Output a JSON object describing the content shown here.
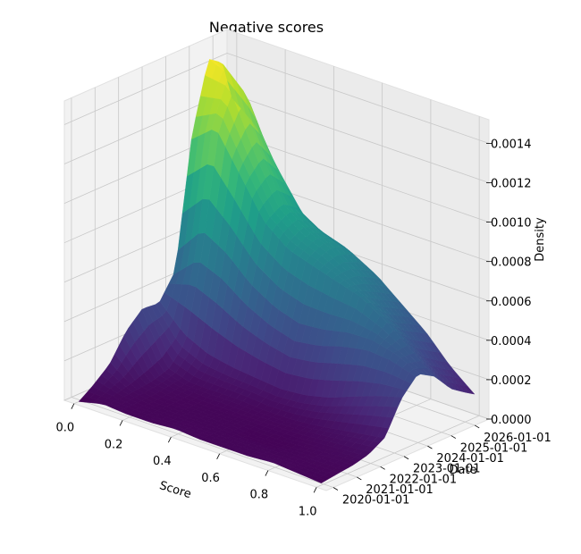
{
  "chart_data": {
    "type": "surface",
    "title": "Negative scores",
    "xlabel": "Score",
    "ylabel": "Date",
    "zlabel": "Density",
    "x_ticks": [
      {
        "value": 0.0,
        "label": "0.0"
      },
      {
        "value": 0.2,
        "label": "0.2"
      },
      {
        "value": 0.4,
        "label": "0.4"
      },
      {
        "value": 0.6,
        "label": "0.6"
      },
      {
        "value": 0.8,
        "label": "0.8"
      },
      {
        "value": 1.0,
        "label": "1.0"
      }
    ],
    "y_ticks": [
      {
        "value": 2020,
        "label": "2020-01-01"
      },
      {
        "value": 2021,
        "label": "2021-01-01"
      },
      {
        "value": 2022,
        "label": "2022-01-01"
      },
      {
        "value": 2023,
        "label": "2023-01-01"
      },
      {
        "value": 2024,
        "label": "2024-01-01"
      },
      {
        "value": 2025,
        "label": "2025-01-01"
      },
      {
        "value": 2026,
        "label": "2026-01-01"
      }
    ],
    "z_ticks": [
      {
        "value": 0.0,
        "label": "0.0000"
      },
      {
        "value": 0.0002,
        "label": "0.0002"
      },
      {
        "value": 0.0004,
        "label": "0.0004"
      },
      {
        "value": 0.0006,
        "label": "0.0006"
      },
      {
        "value": 0.0008,
        "label": "0.0008"
      },
      {
        "value": 0.001,
        "label": "0.0010"
      },
      {
        "value": 0.0012,
        "label": "0.0012"
      },
      {
        "value": 0.0014,
        "label": "0.0014"
      }
    ],
    "xlim": [
      -0.04,
      1.04
    ],
    "ylim": [
      2019.7,
      2026.6
    ],
    "zlim": [
      0,
      0.00152
    ],
    "colormap": "viridis",
    "grid": true,
    "surface": {
      "x": [
        0.0,
        0.1,
        0.2,
        0.3,
        0.4,
        0.5,
        0.6,
        0.7,
        0.8,
        0.9,
        1.0
      ],
      "y": [
        2019.9,
        2020.5,
        2021.2,
        2021.9,
        2022.6,
        2023.3,
        2024.0,
        2024.7,
        2025.4,
        2026.0,
        2026.4
      ],
      "z": [
        [
          0.0,
          3e-05,
          2e-05,
          2e-05,
          3e-05,
          2e-05,
          2e-05,
          2e-05,
          3e-05,
          2e-05,
          1e-05
        ],
        [
          5e-05,
          3e-05,
          2e-05,
          2e-05,
          2e-05,
          2e-05,
          2e-05,
          2e-05,
          2e-05,
          2e-05,
          2e-05
        ],
        [
          0.00012,
          4e-05,
          2e-05,
          2e-05,
          2e-05,
          2e-05,
          1e-05,
          1e-05,
          2e-05,
          3e-05,
          3e-05
        ],
        [
          0.00025,
          5e-05,
          3e-05,
          2e-05,
          2e-05,
          2e-05,
          2e-05,
          2e-05,
          3e-05,
          4e-05,
          5e-05
        ],
        [
          0.00033,
          8e-05,
          4e-05,
          4e-05,
          4e-05,
          3e-05,
          3e-05,
          4e-05,
          6e-05,
          8e-05,
          0.0001
        ],
        [
          0.00032,
          0.00018,
          0.00012,
          0.0001,
          9e-05,
          8e-05,
          9e-05,
          0.00012,
          0.00017,
          0.00022,
          0.00026
        ],
        [
          0.00045,
          0.0006,
          0.00055,
          0.00045,
          0.00038,
          0.00034,
          0.00036,
          0.0004,
          0.00042,
          0.0004,
          0.00035
        ],
        [
          0.0011,
          0.0012,
          0.001,
          0.0008,
          0.0007,
          0.00066,
          0.00062,
          0.00058,
          0.0005,
          0.0004,
          0.0003
        ],
        [
          0.00145,
          0.0014,
          0.0011,
          0.00085,
          0.00075,
          0.0007,
          0.00062,
          0.00052,
          0.00042,
          0.0003,
          0.0002
        ],
        [
          0.0014,
          0.00128,
          0.001,
          0.0008,
          0.00072,
          0.00068,
          0.00058,
          0.00048,
          0.00038,
          0.00025,
          0.00015
        ],
        [
          0.0012,
          0.0011,
          0.0009,
          0.00072,
          0.00066,
          0.00062,
          0.00055,
          0.00045,
          0.00035,
          0.00022,
          0.00012
        ]
      ]
    }
  }
}
